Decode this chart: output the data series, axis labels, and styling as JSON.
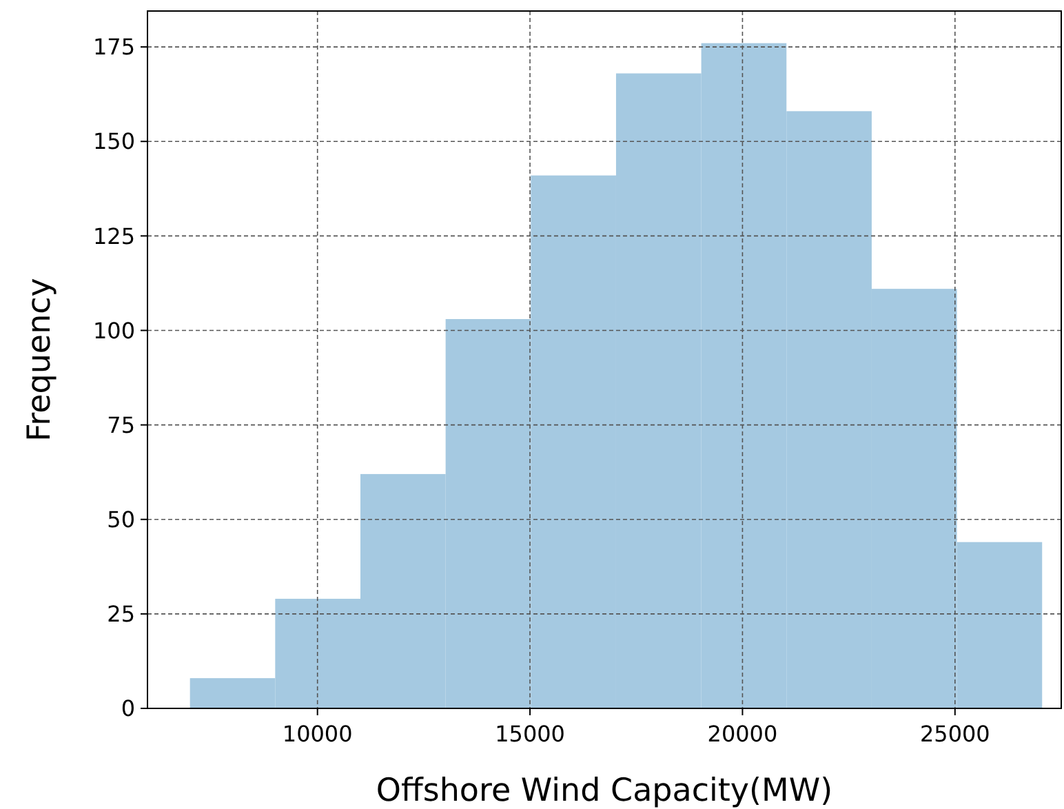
{
  "chart_data": {
    "type": "histogram",
    "xlabel": "Offshore Wind Capacity(MW)",
    "ylabel": "Frequency",
    "bins": [
      7000,
      9005,
      11010,
      13015,
      15020,
      17025,
      19030,
      21035,
      23040,
      25045,
      27050
    ],
    "values": [
      8,
      29,
      62,
      103,
      141,
      168,
      176,
      158,
      111,
      44
    ],
    "color": "#a5c9e1",
    "xlim": [
      6000,
      27500
    ],
    "xticks": [
      10000,
      15000,
      20000,
      25000
    ],
    "ylim": [
      0,
      184.5
    ],
    "yticks": [
      0,
      25,
      50,
      75,
      100,
      125,
      150,
      175
    ],
    "grid": true
  }
}
